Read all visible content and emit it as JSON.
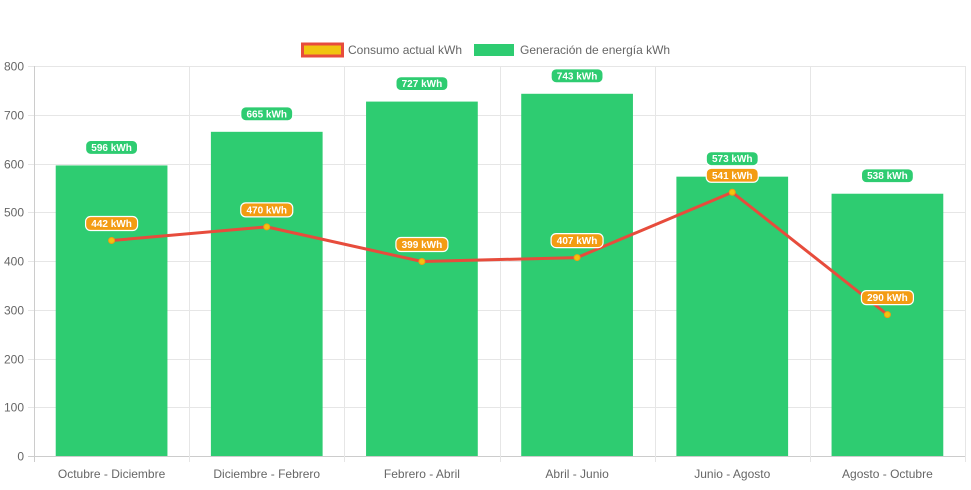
{
  "chart_data": {
    "type": "bar",
    "categories": [
      "Octubre - Diciembre",
      "Diciembre - Febrero",
      "Febrero - Abril",
      "Abril - Junio",
      "Junio - Agosto",
      "Agosto - Octubre"
    ],
    "series": [
      {
        "name": "Consumo actual kWh",
        "type": "line",
        "values": [
          442,
          470,
          399,
          407,
          541,
          290
        ],
        "labels": [
          "442 kWh",
          "470 kWh",
          "399 kWh",
          "407 kWh",
          "541 kWh",
          "290 kWh"
        ],
        "color": "#e74c3c",
        "fill": "#f1c40f",
        "label_color": "#f39c12"
      },
      {
        "name": "Generación de energía kWh",
        "type": "bar",
        "values": [
          596,
          665,
          727,
          743,
          573,
          538
        ],
        "labels": [
          "596 kWh",
          "665 kWh",
          "727 kWh",
          "743 kWh",
          "573 kWh",
          "538 kWh"
        ],
        "color": "#2ecc71"
      }
    ],
    "y_ticks": [
      "0",
      "100",
      "200",
      "300",
      "400",
      "500",
      "600",
      "700",
      "800"
    ],
    "ylim": [
      0,
      800
    ],
    "grid": true,
    "legend_position": "top"
  }
}
